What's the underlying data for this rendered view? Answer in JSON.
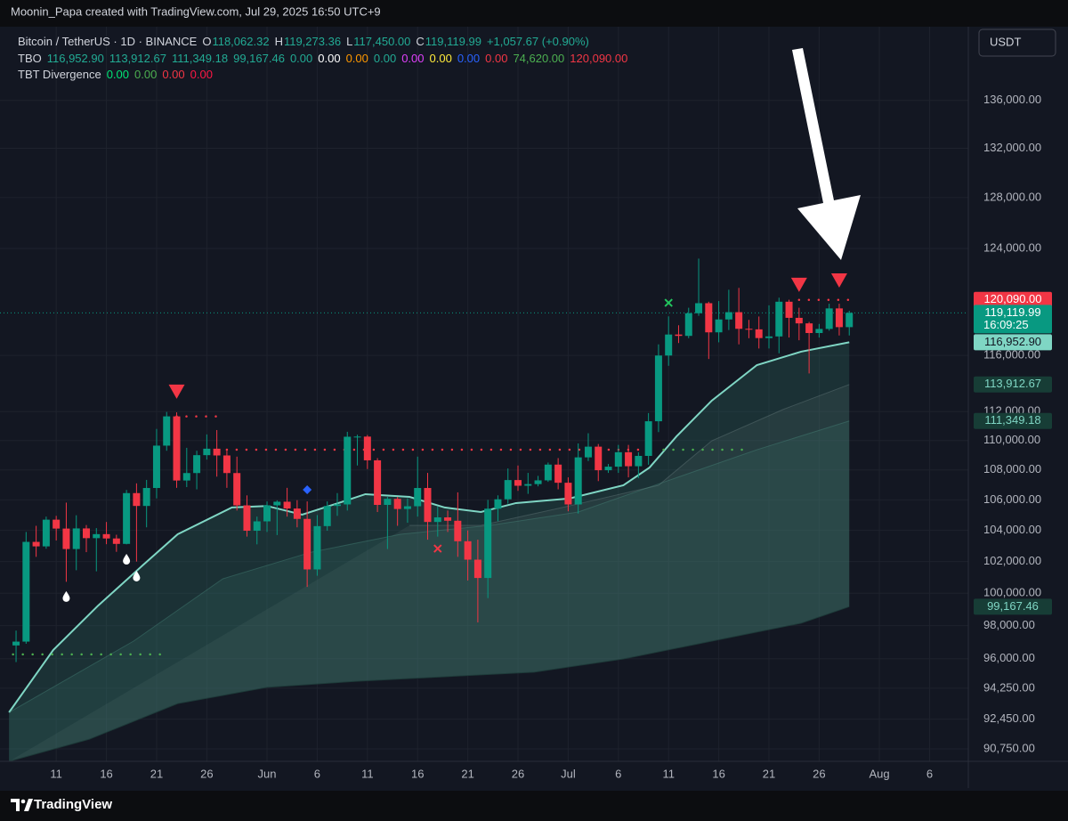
{
  "header": {
    "credit": "Moonin_Papa created with TradingView.com, Jul 29, 2025 16:50 UTC+9",
    "currency": "USDT",
    "footer": "TradingView"
  },
  "legend": [
    {
      "name": "Bitcoin / TetherUS · 1D · BINANCE",
      "color": "#d1d4dc",
      "items": [
        {
          "text": "O",
          "color": "#d1d4dc"
        },
        {
          "text": "118,062.32",
          "color": "#22ab94"
        },
        {
          "text": "H",
          "color": "#d1d4dc"
        },
        {
          "text": "119,273.36",
          "color": "#22ab94"
        },
        {
          "text": "L",
          "color": "#d1d4dc"
        },
        {
          "text": "117,450.00",
          "color": "#22ab94"
        },
        {
          "text": "C",
          "color": "#d1d4dc"
        },
        {
          "text": "119,119.99",
          "color": "#22ab94"
        },
        {
          "text": "+1,057.67 (+0.90%)",
          "color": "#22ab94"
        }
      ]
    },
    {
      "name": "TBO",
      "color": "#d1d4dc",
      "items": [
        {
          "text": "116,952.90",
          "color": "#22ab94"
        },
        {
          "text": "113,912.67",
          "color": "#22ab94"
        },
        {
          "text": "111,349.18",
          "color": "#22ab94"
        },
        {
          "text": "99,167.46",
          "color": "#22ab94"
        },
        {
          "text": "0.00",
          "color": "#22ab94"
        },
        {
          "text": "0.00",
          "color": "#ffffff"
        },
        {
          "text": "0.00",
          "color": "#ff9800"
        },
        {
          "text": "0.00",
          "color": "#22ab94"
        },
        {
          "text": "0.00",
          "color": "#e040fb"
        },
        {
          "text": "0.00",
          "color": "#ffeb3b"
        },
        {
          "text": "0.00",
          "color": "#2962ff"
        },
        {
          "text": "0.00",
          "color": "#f23645"
        },
        {
          "text": "74,620.00",
          "color": "#4caf50"
        },
        {
          "text": "120,090.00",
          "color": "#f23645"
        }
      ]
    },
    {
      "name": "TBT Divergence",
      "color": "#d1d4dc",
      "items": [
        {
          "text": "0.00",
          "color": "#00e676"
        },
        {
          "text": "0.00",
          "color": "#4caf50"
        },
        {
          "text": "0.00",
          "color": "#f23645"
        },
        {
          "text": "0.00",
          "color": "#ff1744"
        }
      ]
    }
  ],
  "chart_data": {
    "type": "candlestick",
    "log": true,
    "grid": true,
    "up_color": "#089981",
    "down_color": "#f23645",
    "xlim": [
      4.4,
      100.86
    ],
    "xticks": [
      {
        "value": 10,
        "label": "11"
      },
      {
        "value": 15,
        "label": "16"
      },
      {
        "value": 20,
        "label": "21"
      },
      {
        "value": 25,
        "label": "26"
      },
      {
        "value": 31,
        "label": "Jun"
      },
      {
        "value": 36,
        "label": "6"
      },
      {
        "value": 41,
        "label": "11"
      },
      {
        "value": 46,
        "label": "16"
      },
      {
        "value": 51,
        "label": "21"
      },
      {
        "value": 56,
        "label": "26"
      },
      {
        "value": 61,
        "label": "Jul"
      },
      {
        "value": 66,
        "label": "6"
      },
      {
        "value": 71,
        "label": "11"
      },
      {
        "value": 76,
        "label": "16"
      },
      {
        "value": 81,
        "label": "21"
      },
      {
        "value": 86,
        "label": "26"
      },
      {
        "value": 92,
        "label": "Aug"
      },
      {
        "value": 97,
        "label": "6"
      }
    ],
    "ylim": [
      90047,
      142400
    ],
    "yticks": [
      {
        "value": 90750,
        "label": "90,750.00"
      },
      {
        "value": 92450,
        "label": "92,450.00"
      },
      {
        "value": 94250,
        "label": "94,250.00"
      },
      {
        "value": 96000,
        "label": "96,000.00"
      },
      {
        "value": 98000,
        "label": "98,000.00"
      },
      {
        "value": 100000,
        "label": "100,000.00"
      },
      {
        "value": 102000,
        "label": "102,000.00"
      },
      {
        "value": 104000,
        "label": "104,000.00"
      },
      {
        "value": 106000,
        "label": "106,000.00"
      },
      {
        "value": 108000,
        "label": "108,000.00"
      },
      {
        "value": 110000,
        "label": "110,000.00"
      },
      {
        "value": 112000,
        "label": "112,000.00"
      },
      {
        "value": 116000,
        "label": "116,000.00"
      },
      {
        "value": 124000,
        "label": "124,000.00"
      },
      {
        "value": 128000,
        "label": "128,000.00"
      },
      {
        "value": 132000,
        "label": "132,000.00"
      },
      {
        "value": 136000,
        "label": "136,000.00"
      }
    ],
    "x": [
      6,
      7,
      8,
      9,
      10,
      11,
      12,
      13,
      14,
      15,
      16,
      17,
      18,
      19,
      20,
      21,
      22,
      23,
      24,
      25,
      26,
      27,
      28,
      29,
      30,
      31,
      32,
      33,
      34,
      35,
      36,
      37,
      38,
      39,
      40,
      41,
      42,
      43,
      44,
      45,
      46,
      47,
      48,
      49,
      50,
      51,
      52,
      53,
      54,
      55,
      56,
      57,
      58,
      59,
      60,
      61,
      62,
      63,
      64,
      65,
      66,
      67,
      68,
      69,
      70,
      71,
      72,
      73,
      74,
      75,
      76,
      77,
      78,
      79,
      80,
      81,
      82,
      83,
      84,
      85,
      86,
      87,
      88,
      89
    ],
    "open": [
      96800,
      97030,
      103260,
      102970,
      104700,
      104120,
      102800,
      104130,
      103500,
      103760,
      103480,
      103130,
      106450,
      105600,
      106790,
      109650,
      111670,
      107290,
      107790,
      109000,
      109440,
      108980,
      107790,
      105640,
      103980,
      104590,
      105640,
      105880,
      105430,
      104750,
      101500,
      104280,
      105600,
      105700,
      110260,
      110270,
      108650,
      105670,
      106070,
      105400,
      105580,
      106790,
      104550,
      104850,
      104630,
      103300,
      102120,
      100960,
      105420,
      106040,
      107320,
      106940,
      107050,
      107300,
      108360,
      107140,
      105700,
      108850,
      109580,
      107980,
      108220,
      109200,
      108250,
      108950,
      111330,
      115990,
      117520,
      117420,
      119090,
      119840,
      117680,
      118630,
      119170,
      117940,
      117900,
      117260,
      117380,
      119950,
      118750,
      118340,
      117630,
      117930,
      119450,
      118062.32
    ],
    "high": [
      97700,
      103900,
      104300,
      104900,
      104950,
      105820,
      104990,
      104350,
      104150,
      104550,
      103720,
      106660,
      107100,
      107330,
      110800,
      111980,
      111950,
      109500,
      109300,
      110420,
      110720,
      109300,
      108900,
      106300,
      104900,
      105900,
      105970,
      106800,
      105980,
      105900,
      105000,
      105900,
      106450,
      110600,
      110400,
      110380,
      108800,
      106200,
      106200,
      106100,
      108900,
      107800,
      105560,
      105300,
      106500,
      104000,
      103400,
      106000,
      106300,
      108100,
      108300,
      107800,
      107600,
      108500,
      108800,
      107500,
      109800,
      110500,
      109760,
      108400,
      109700,
      109700,
      109200,
      111900,
      116800,
      118860,
      118200,
      119500,
      123220,
      119950,
      120000,
      120850,
      120990,
      118600,
      118850,
      119680,
      120250,
      120100,
      119500,
      118450,
      118300,
      119800,
      119800,
      119273.36
    ],
    "low": [
      95800,
      96900,
      102300,
      102820,
      103350,
      100720,
      101450,
      102600,
      101380,
      103110,
      102620,
      103100,
      102000,
      104200,
      106100,
      109300,
      106800,
      106850,
      106700,
      108700,
      107550,
      106800,
      105300,
      103600,
      103100,
      103900,
      103700,
      104900,
      104200,
      100400,
      101100,
      103980,
      104950,
      105300,
      108300,
      108060,
      105200,
      102800,
      104300,
      104500,
      104900,
      103400,
      103600,
      103900,
      102300,
      100800,
      98200,
      99700,
      104600,
      105750,
      106600,
      106400,
      106900,
      107200,
      106700,
      105250,
      105100,
      108600,
      107250,
      107800,
      107800,
      107500,
      107450,
      108350,
      110580,
      115250,
      116900,
      117250,
      118900,
      115740,
      116950,
      117850,
      116800,
      117250,
      116500,
      116500,
      116150,
      117300,
      117100,
      114700,
      117300,
      117800,
      117450,
      117450
    ],
    "close": [
      97030,
      103260,
      102970,
      104700,
      104120,
      102800,
      104130,
      103500,
      103760,
      103480,
      103130,
      106450,
      105600,
      106790,
      109650,
      111670,
      107290,
      107790,
      109000,
      109440,
      108980,
      107790,
      105640,
      103980,
      104590,
      105640,
      105880,
      105430,
      104750,
      101500,
      104280,
      105600,
      105700,
      110260,
      110270,
      108650,
      105670,
      106070,
      105400,
      105580,
      106790,
      104550,
      104850,
      104630,
      103300,
      102120,
      100960,
      105420,
      106040,
      107320,
      106940,
      107050,
      107300,
      108360,
      107140,
      105700,
      108850,
      109580,
      107980,
      108220,
      109200,
      108250,
      108950,
      111330,
      115990,
      117520,
      117420,
      119090,
      119840,
      117680,
      118630,
      119170,
      117940,
      117900,
      117260,
      117380,
      119950,
      118750,
      118340,
      117630,
      117930,
      119450,
      118062.32,
      119119.99
    ],
    "lines": [
      {
        "color": "#7fd6c4",
        "width": 2,
        "fill": "rgba(45,110,100,0.30)",
        "x": [
          5.3,
          9.7,
          14.2,
          18.6,
          22.1,
          27.5,
          31,
          34.5,
          38.1,
          40.8,
          45.2,
          48.7,
          52.3,
          55.8,
          61.1,
          66.5,
          69.1,
          71.8,
          75.3,
          79.8,
          84.2,
          89
        ],
        "values": [
          92840,
          96520,
          99250,
          101750,
          103750,
          105500,
          105600,
          105030,
          105790,
          106380,
          106200,
          105500,
          105200,
          105790,
          106090,
          106970,
          108160,
          110290,
          112770,
          115300,
          116270,
          116952.9
        ]
      },
      {
        "color": "rgba(150,170,170,0.25)",
        "width": 1,
        "fill": "rgba(120,140,140,0.12)",
        "x": [
          45.2,
          52.3,
          61.1,
          70,
          75.3,
          82.4,
          89
        ],
        "values": [
          104330,
          104330,
          105600,
          106970,
          109980,
          112150,
          113912.67
        ]
      },
      {
        "color": "rgba(80,150,135,0.35)",
        "width": 1,
        "fill": "rgba(60,130,118,0.18)",
        "x": [
          5.3,
          17.7,
          26.6,
          35.4,
          44.3,
          53.2,
          62,
          70.9,
          79.8,
          89
        ],
        "values": [
          92840,
          97060,
          100910,
          102600,
          103750,
          104330,
          105200,
          107270,
          109370,
          111349.18
        ]
      },
      {
        "color": "rgba(30,60,58,0.9)",
        "width": 1,
        "x": [
          5.3,
          13.3,
          22.1,
          31,
          39.9,
          48.7,
          57.6,
          66.5,
          75.3,
          84.2,
          89
        ],
        "values": [
          90045,
          91300,
          93350,
          94300,
          94660,
          94930,
          95200,
          95990,
          97060,
          98150,
          99167.46
        ]
      }
    ],
    "levels": [
      {
        "color": "#f23645",
        "value": 111670,
        "x": [
          22,
          26.1
        ]
      },
      {
        "color": "#f23645",
        "value": 109370,
        "x": [
          27,
          68.2
        ]
      },
      {
        "color": "#f23645",
        "value": 120090,
        "x": [
          84,
          89
        ]
      },
      {
        "color": "#4caf50",
        "value": 109370,
        "x": [
          70.5,
          78.9
        ]
      },
      {
        "color": "#4caf50",
        "value": 96260,
        "x": [
          5.7,
          21.2
        ]
      }
    ],
    "markers": [
      {
        "shape": "triangle-down",
        "color": "#f23645",
        "x": 22,
        "value": 113400
      },
      {
        "shape": "triangle-down",
        "color": "#f23645",
        "x": 84,
        "value": 121220
      },
      {
        "shape": "triangle-down",
        "color": "#f23645",
        "x": 88,
        "value": 121550
      },
      {
        "shape": "cross",
        "color": "#22c55e",
        "x": 71,
        "value": 119870
      },
      {
        "shape": "cross",
        "color": "#f23645",
        "x": 48,
        "value": 102830
      },
      {
        "shape": "diamond",
        "color": "#2962ff",
        "x": 35,
        "value": 106670
      },
      {
        "shape": "drop",
        "color": "#ffffff",
        "x": 11,
        "value": 99800
      },
      {
        "shape": "drop",
        "color": "#ffffff",
        "x": 17,
        "value": 102150
      },
      {
        "shape": "drop",
        "color": "#ffffff",
        "x": 18,
        "value": 101080
      }
    ],
    "price_labels": [
      {
        "value": 120090,
        "label": "120,090.00",
        "color": "#f23645",
        "text_color": "#ffffff"
      },
      {
        "value": 119119.99,
        "label": "119,119.99",
        "color": "#089981",
        "text_color": "#ffffff",
        "countdown": "16:09:25"
      },
      {
        "value": 116952.9,
        "label": "116,952.90",
        "color": "#7fd6c4",
        "text_color": "#131722"
      },
      {
        "value": 113912.67,
        "label": "113,912.67",
        "color": "#173d36",
        "text_color": "#7fd6c4"
      },
      {
        "value": 111349.18,
        "label": "111,349.18",
        "color": "#173d36",
        "text_color": "#7fd6c4"
      },
      {
        "value": 99167.46,
        "label": "99,167.46",
        "color": "#173d36",
        "text_color": "#7fd6c4"
      }
    ]
  }
}
